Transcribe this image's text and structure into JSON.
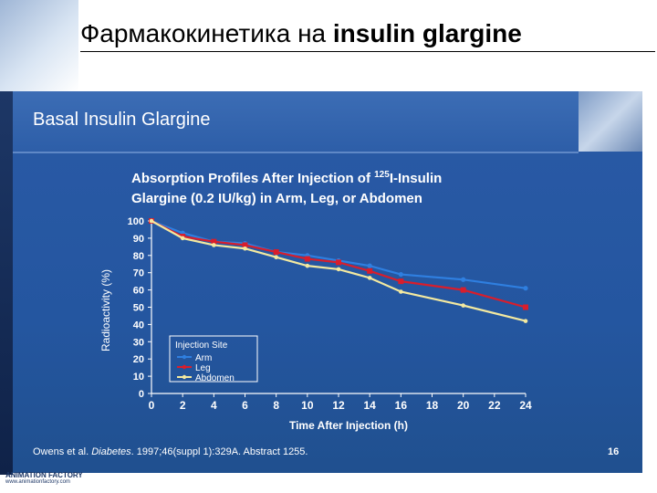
{
  "header": {
    "title_prefix": "Фармакокинетика на ",
    "title_bold": "insulin glargine"
  },
  "slide": {
    "title": "Basal Insulin Glargine",
    "citation_prefix": "Owens et al. ",
    "citation_journal": "Diabetes",
    "citation_rest": ". 1997;46(suppl 1):329A. Abstract 1255.",
    "slide_number": "16"
  },
  "footer": {
    "logo_line1": "ANIMATION FACTORY",
    "logo_line2": "www.animationfactory.com"
  },
  "chart_data": {
    "type": "line",
    "title_line1_prefix": "Absorption Profiles After Injection of ",
    "title_superscript": "125",
    "title_line1_suffix": "I-Insulin",
    "title_line2": "Glargine (0.2 IU/kg) in Arm, Leg, or Abdomen",
    "xlabel": "Time After Injection (h)",
    "ylabel": "Radioactivity (%)",
    "xlim": [
      0,
      24
    ],
    "ylim": [
      0,
      100
    ],
    "xticks": [
      "0",
      "2",
      "4",
      "6",
      "8",
      "10",
      "12",
      "14",
      "16",
      "18",
      "20",
      "22",
      "24"
    ],
    "yticks": [
      "0",
      "10",
      "20",
      "30",
      "40",
      "50",
      "60",
      "70",
      "80",
      "90",
      "100"
    ],
    "legend_title": "Injection Site",
    "legend_position": "bottom-left",
    "grid": false,
    "x": [
      0,
      2,
      4,
      6,
      8,
      10,
      12,
      14,
      16,
      20,
      24
    ],
    "series": [
      {
        "name": "Arm",
        "color": "#2f7fe0",
        "values": [
          100,
          93,
          88,
          87,
          82,
          80,
          77,
          74,
          69,
          66,
          61
        ]
      },
      {
        "name": "Leg",
        "color": "#d81e2c",
        "values": [
          100,
          91,
          88,
          86,
          82,
          78,
          76,
          71,
          65,
          60,
          50
        ]
      },
      {
        "name": "Abdomen",
        "color": "#f3e9a0",
        "values": [
          100,
          90,
          86,
          84,
          79,
          74,
          72,
          67,
          59,
          51,
          42
        ]
      }
    ]
  }
}
